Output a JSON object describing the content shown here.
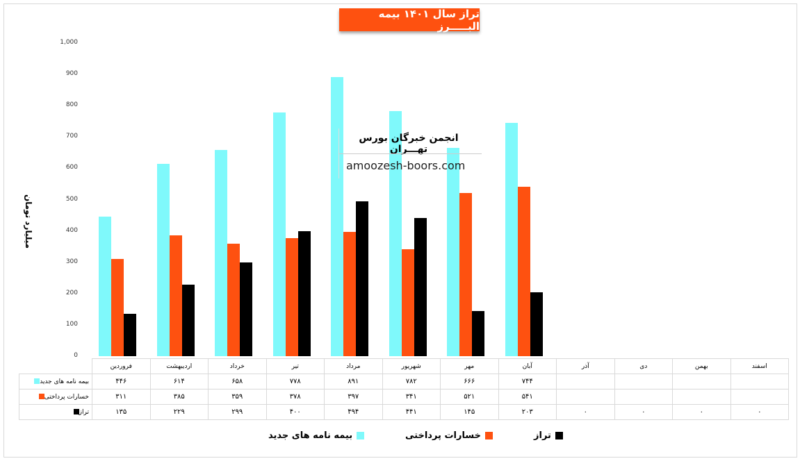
{
  "title": "تراز سال ۱۴۰۱ بیمه البـــــرز",
  "watermark": {
    "line1": "انجمن خبرگان بورس تهـــران",
    "line2": "amoozesh-boors.com"
  },
  "chart_data": {
    "type": "bar",
    "title": "تراز سال ۱۴۰۱ بیمه البـــــرز",
    "ylabel": "میلیارد تومان",
    "ylim": [
      0,
      1000
    ],
    "yticks": [
      "0",
      "100",
      "200",
      "300",
      "400",
      "500",
      "600",
      "700",
      "800",
      "900",
      "1,000"
    ],
    "categories": [
      "فروردین",
      "اردیبهشت",
      "خرداد",
      "تیر",
      "مرداد",
      "شهریور",
      "مهر",
      "آبان",
      "آذر",
      "دی",
      "بهمن",
      "اسفند"
    ],
    "series": [
      {
        "name": "بیمه نامه های جدید",
        "color": "#7ff9fb",
        "values": [
          446,
          614,
          658,
          778,
          891,
          782,
          666,
          744,
          null,
          null,
          null,
          null
        ],
        "labels": [
          "۴۴۶",
          "۶۱۴",
          "۶۵۸",
          "۷۷۸",
          "۸۹۱",
          "۷۸۲",
          "۶۶۶",
          "۷۴۴",
          "",
          "",
          "",
          ""
        ]
      },
      {
        "name": "خسارات پرداختی",
        "color": "#fe5110",
        "values": [
          311,
          385,
          359,
          378,
          397,
          341,
          521,
          541,
          null,
          null,
          null,
          null
        ],
        "labels": [
          "۳۱۱",
          "۳۸۵",
          "۳۵۹",
          "۳۷۸",
          "۳۹۷",
          "۳۴۱",
          "۵۲۱",
          "۵۴۱",
          "",
          "",
          "",
          ""
        ]
      },
      {
        "name": "تراز",
        "color": "#000000",
        "values": [
          135,
          229,
          299,
          400,
          494,
          441,
          145,
          203,
          0,
          0,
          0,
          0
        ],
        "labels": [
          "۱۳۵",
          "۲۲۹",
          "۲۹۹",
          "۴۰۰",
          "۴۹۴",
          "۴۴۱",
          "۱۴۵",
          "۲۰۳",
          "۰",
          "۰",
          "۰",
          "۰"
        ]
      }
    ],
    "legend": "bottom"
  }
}
